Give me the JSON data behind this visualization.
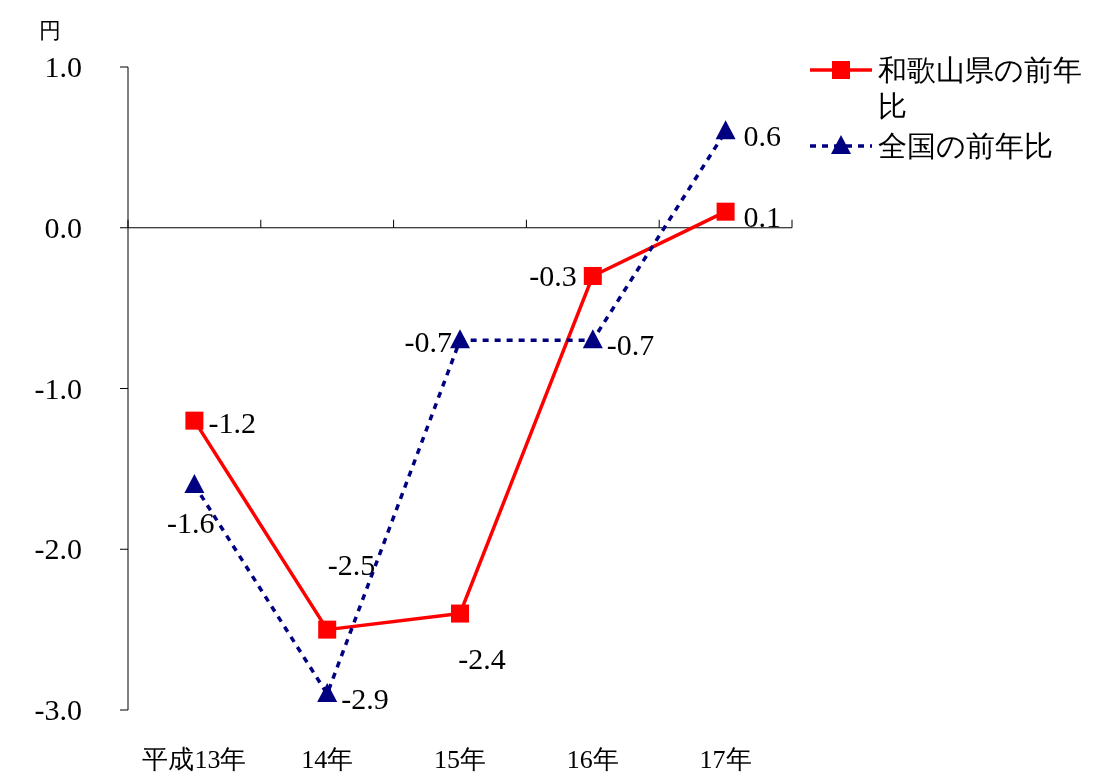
{
  "chart_data": {
    "type": "line",
    "ylabel": "円",
    "categories": [
      "平成13年",
      "14年",
      "15年",
      "16年",
      "17年"
    ],
    "series": [
      {
        "name": "和歌山県の前年比",
        "color": "#ff0000",
        "values": [
          -1.2,
          -2.5,
          -2.4,
          -0.3,
          0.1
        ],
        "marker": "square",
        "line_style": "solid"
      },
      {
        "name": "全国の前年比",
        "color": "#000080",
        "values": [
          -1.6,
          -2.9,
          -0.7,
          -0.7,
          0.6
        ],
        "marker": "triangle",
        "line_style": "dotted"
      }
    ],
    "ylim": [
      -3,
      1
    ],
    "yticks": [
      {
        "value": 1,
        "label": "1.0"
      },
      {
        "value": 0,
        "label": "0.0"
      },
      {
        "value": -1,
        "label": "-1.0"
      },
      {
        "value": -2,
        "label": "-2.0"
      },
      {
        "value": -3,
        "label": "-3.0"
      }
    ],
    "data_labels": true,
    "legend": "top right"
  }
}
